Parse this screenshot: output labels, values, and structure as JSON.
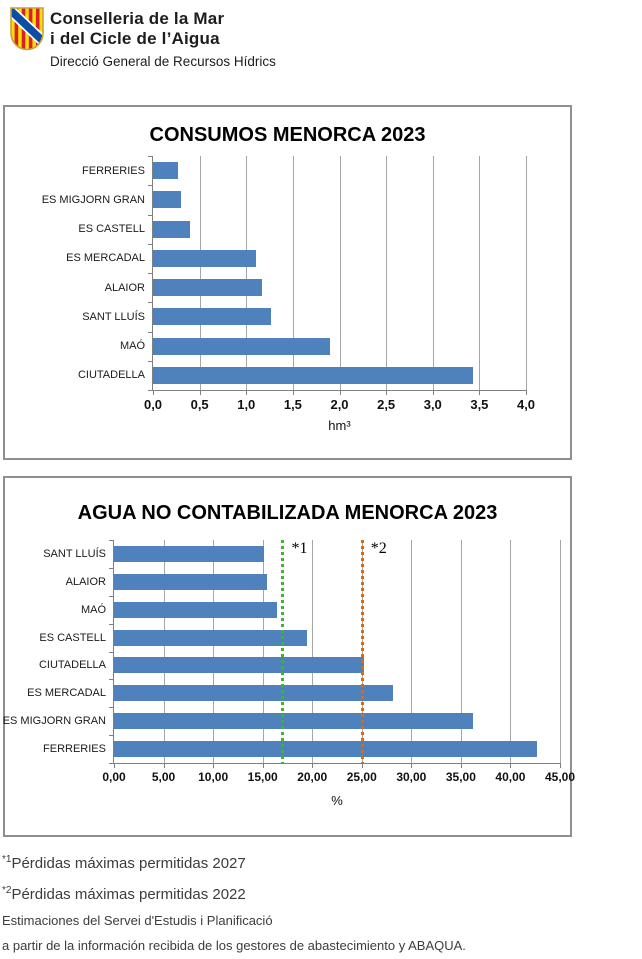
{
  "header": {
    "org_line1": "Conselleria de la Mar",
    "org_line2": "i del Cicle de l’Aigua",
    "department": "Direcció General de Recursos Hídrics",
    "logo": "escut-illes-balears",
    "logo_colors": {
      "gold": "#FCDD09",
      "red": "#DB1F26",
      "blue": "#0B4EA2",
      "border": "#C9A13B"
    }
  },
  "chart_data": [
    {
      "type": "bar",
      "orientation": "horizontal",
      "title": "CONSUMOS MENORCA 2023",
      "categories": [
        "FERRERIES",
        "ES MIGJORN GRAN",
        "ES CASTELL",
        "ES MERCADAL",
        "ALAIOR",
        "SANT LLUÍS",
        "MAÓ",
        "CIUTADELLA"
      ],
      "values": [
        0.27,
        0.3,
        0.4,
        1.1,
        1.17,
        1.27,
        1.9,
        3.43
      ],
      "xlabel": "hm³",
      "xlim": [
        0,
        4
      ],
      "xticks": [
        "0,0",
        "0,5",
        "1,0",
        "1,5",
        "2,0",
        "2,5",
        "3,0",
        "3,5",
        "4,0"
      ],
      "grid": true,
      "legend": "none",
      "bar_color": "#4F81BD"
    },
    {
      "type": "bar",
      "orientation": "horizontal",
      "title": "AGUA NO CONTABILIZADA MENORCA 2023",
      "categories": [
        "SANT LLUÍS",
        "ALAIOR",
        "MAÓ",
        "ES CASTELL",
        "CIUTADELLA",
        "ES MERCADAL",
        "ES MIGJORN GRAN",
        "FERRERIES"
      ],
      "values": [
        15.1,
        15.4,
        16.4,
        19.5,
        25.2,
        28.2,
        36.2,
        42.7
      ],
      "xlabel": "%",
      "xlim": [
        0,
        45
      ],
      "xticks": [
        "0,00",
        "5,00",
        "10,00",
        "15,00",
        "20,00",
        "25,00",
        "30,00",
        "35,00",
        "40,00",
        "45,00"
      ],
      "grid": true,
      "legend": "none",
      "bar_color": "#4F81BD",
      "reference_lines": [
        {
          "label": "*1",
          "value": 17,
          "color": "#3CB62E",
          "style": "dotted"
        },
        {
          "label": "*2",
          "value": 25,
          "color": "#DD6B0D",
          "style": "dotted"
        }
      ]
    }
  ],
  "footnotes": [
    {
      "marker": "*1",
      "text": "Pérdidas máximas permitidas 2027"
    },
    {
      "marker": "*2",
      "text": "Pérdidas máximas permitidas 2022"
    }
  ],
  "source_note": [
    "Estimaciones del Servei d'Estudis i Planificació",
    "a partir de la información recibida de los gestores de abastecimiento y ABAQUA."
  ]
}
